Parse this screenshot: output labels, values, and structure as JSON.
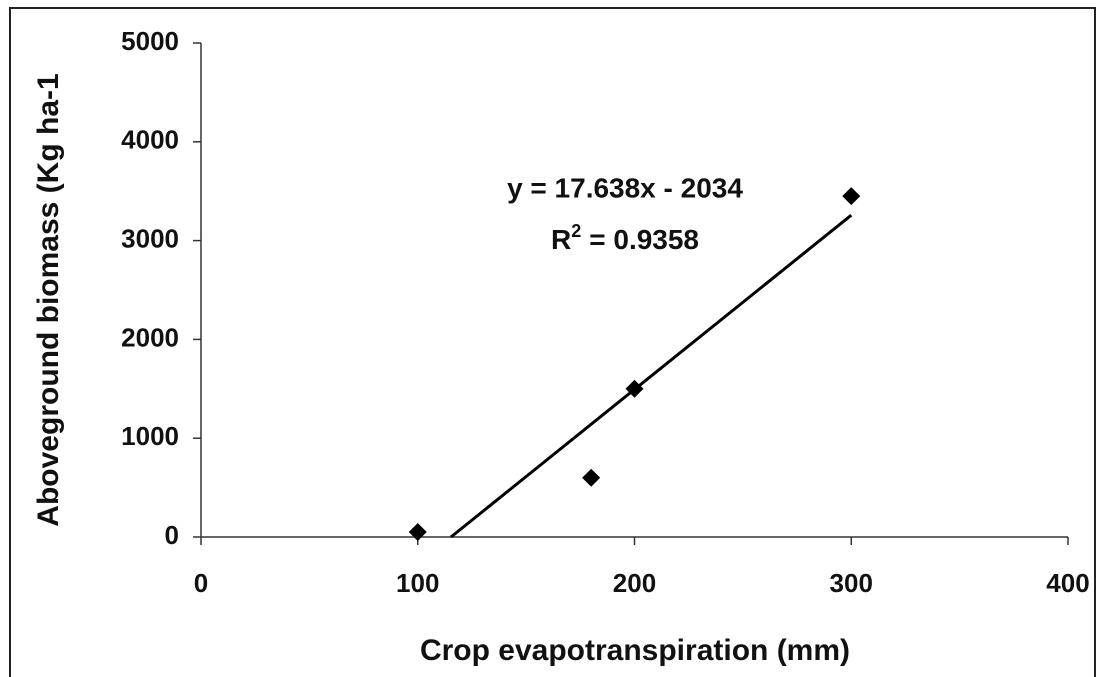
{
  "chart_data": {
    "type": "scatter",
    "xlabel": "Crop evapotranspiration (mm)",
    "ylabel": "Aboveground biomass (Kg ha-1",
    "x": [
      100,
      180,
      200,
      300
    ],
    "values": [
      50,
      600,
      1500,
      3450
    ],
    "color": "#000000",
    "xlim": [
      0,
      400
    ],
    "xticks": [
      0,
      100,
      200,
      300,
      400
    ],
    "ylim": [
      0,
      5000
    ],
    "yticks": [
      0,
      1000,
      2000,
      3000,
      4000,
      5000
    ],
    "trendline": {
      "slope": 17.638,
      "intercept": -2034,
      "equation": "y = 17.638x - 2034",
      "r2_symbol": "R",
      "r2_exponent": "2",
      "r2_text": "= 0.9358"
    }
  }
}
